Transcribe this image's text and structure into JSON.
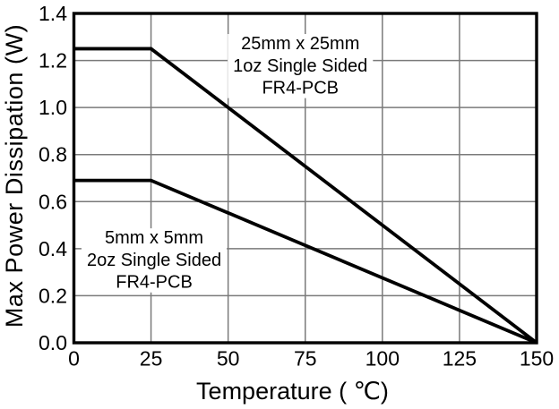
{
  "figure": {
    "background": "#ffffff",
    "text_color": "#000000",
    "grid_color": "#7a7a7a",
    "frame_color": "#000000",
    "line_color": "#000000"
  },
  "chart_data": {
    "type": "line",
    "title": "",
    "xlabel": "Temperature ( ℃)",
    "ylabel": "Max Power Dissipation (W)",
    "xlim": [
      0,
      150
    ],
    "ylim": [
      0.0,
      1.4
    ],
    "xtick_labels": [
      "0",
      "25",
      "50",
      "75",
      "100",
      "125",
      "150"
    ],
    "xtick_values": [
      0,
      25,
      50,
      75,
      100,
      125,
      150
    ],
    "ytick_labels": [
      "0.0",
      "0.2",
      "0.4",
      "0.6",
      "0.8",
      "1.0",
      "1.2",
      "1.4"
    ],
    "ytick_values": [
      0.0,
      0.2,
      0.4,
      0.6,
      0.8,
      1.0,
      1.2,
      1.4
    ],
    "grid": true,
    "legend_position": "none",
    "series": [
      {
        "name": "25mm x 25mm 1oz Single Sided FR4-PCB",
        "x": [
          0,
          25,
          150
        ],
        "y": [
          1.25,
          1.25,
          0.0
        ],
        "color": "#000000"
      },
      {
        "name": "5mm x 5mm 2oz Single Sided FR4-PCB",
        "x": [
          0,
          25,
          150
        ],
        "y": [
          0.69,
          0.69,
          0.0
        ],
        "color": "#000000"
      }
    ],
    "annotations": [
      {
        "lines": [
          "25mm x 25mm",
          "1oz Single Sided",
          "FR4-PCB"
        ],
        "x": 73.4,
        "y": 1.18
      },
      {
        "lines": [
          "5mm x 5mm",
          "2oz Single Sided",
          "FR4-PCB"
        ],
        "x": 26.0,
        "y": 0.354
      }
    ]
  }
}
